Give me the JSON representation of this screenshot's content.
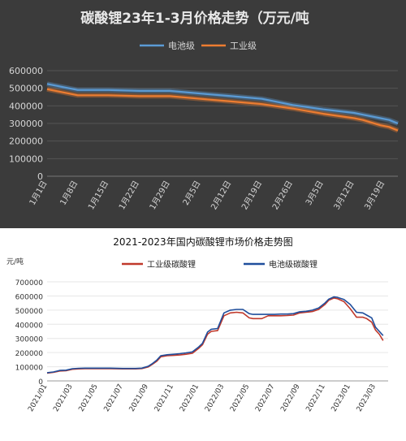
{
  "chart_data": [
    {
      "type": "line",
      "title": "碳酸锂23年1-3月价格走势（万元/吨",
      "legend_position": "top",
      "ylim": [
        0,
        600000
      ],
      "yticks": [
        0,
        100000,
        200000,
        300000,
        400000,
        500000,
        600000
      ],
      "ytick_labels": [
        "0",
        "100000",
        "200000",
        "300000",
        "400000",
        "500000",
        "600000"
      ],
      "xtick_labels": [
        "1月1日",
        "1月8日",
        "1月15日",
        "1月22日",
        "1月29日",
        "2月5日",
        "2月12日",
        "2月19日",
        "2月26日",
        "3月5日",
        "3月12日",
        "3月19日"
      ],
      "grid": true,
      "colors": {
        "电池级": "#5b9bd5",
        "工业级": "#ed7d31"
      },
      "series": [
        {
          "name": "电池级",
          "x": [
            0,
            7,
            14,
            21,
            28,
            35,
            42,
            49,
            56,
            63,
            70,
            72,
            76,
            78,
            80
          ],
          "values": [
            525000,
            490000,
            490000,
            485000,
            485000,
            470000,
            455000,
            440000,
            405000,
            380000,
            360000,
            350000,
            330000,
            320000,
            300000
          ]
        },
        {
          "name": "工业级",
          "x": [
            0,
            7,
            14,
            21,
            28,
            35,
            42,
            49,
            56,
            63,
            70,
            72,
            76,
            78,
            80
          ],
          "values": [
            495000,
            460000,
            460000,
            455000,
            455000,
            440000,
            425000,
            410000,
            385000,
            355000,
            330000,
            320000,
            290000,
            280000,
            260000
          ]
        }
      ]
    },
    {
      "type": "line",
      "title": "2021-2023年国内碳酸锂市场价格走势图",
      "ylabel": "元/吨",
      "legend_position": "top",
      "ylim": [
        0,
        700000
      ],
      "yticks": [
        0,
        100000,
        200000,
        300000,
        400000,
        500000,
        600000,
        700000
      ],
      "ytick_labels": [
        "0",
        "100000",
        "200000",
        "300000",
        "400000",
        "500000",
        "600000",
        "700000"
      ],
      "xtick_labels": [
        "2021/01",
        "2021/03",
        "2021/05",
        "2021/07",
        "2021/09",
        "2021/11",
        "2022/01",
        "2022/03",
        "2022/05",
        "2022/07",
        "2022/09",
        "2022/11",
        "2023/01",
        "2023/03"
      ],
      "grid": true,
      "colors": {
        "工业级碳酸锂": "#c0392b",
        "电池级碳酸锂": "#1f4e9c"
      },
      "series": [
        {
          "name": "工业级碳酸锂",
          "x": [
            0,
            0.5,
            1,
            1.5,
            2,
            2.5,
            3,
            4,
            5,
            6,
            7,
            7.5,
            8,
            8.3,
            8.7,
            9,
            9.5,
            10,
            10.5,
            11,
            11.5,
            12,
            12.3,
            12.7,
            13,
            13.5,
            14,
            14.5,
            15,
            15.5,
            16,
            16.3,
            16.7,
            17,
            17.5,
            18,
            18.5,
            19,
            19.5,
            20,
            20.5,
            21,
            21.5,
            22,
            22.3,
            22.7,
            23,
            23.5,
            24,
            24.5,
            25,
            25.3,
            25.7,
            26,
            26.3,
            26.6
          ],
          "values": [
            55000,
            60000,
            70000,
            72000,
            82000,
            85000,
            86000,
            86000,
            86000,
            85000,
            85000,
            87000,
            98000,
            115000,
            140000,
            170000,
            178000,
            180000,
            183000,
            188000,
            195000,
            230000,
            255000,
            330000,
            350000,
            355000,
            460000,
            480000,
            485000,
            480000,
            445000,
            440000,
            440000,
            440000,
            460000,
            460000,
            460000,
            462000,
            465000,
            480000,
            485000,
            490000,
            505000,
            540000,
            570000,
            585000,
            580000,
            560000,
            510000,
            450000,
            450000,
            440000,
            415000,
            360000,
            330000,
            285000
          ]
        },
        {
          "name": "电池级碳酸锂",
          "x": [
            0,
            0.5,
            1,
            1.5,
            2,
            2.5,
            3,
            4,
            5,
            6,
            7,
            7.5,
            8,
            8.3,
            8.7,
            9,
            9.5,
            10,
            10.5,
            11,
            11.5,
            12,
            12.3,
            12.7,
            13,
            13.5,
            14,
            14.5,
            15,
            15.5,
            16,
            16.3,
            16.7,
            17,
            17.5,
            18,
            18.5,
            19,
            19.5,
            20,
            20.5,
            21,
            21.5,
            22,
            22.3,
            22.7,
            23,
            23.5,
            24,
            24.5,
            25,
            25.3,
            25.7,
            26,
            26.3,
            26.6
          ],
          "values": [
            58000,
            63000,
            74000,
            76000,
            86000,
            89000,
            90000,
            90000,
            90000,
            88000,
            88000,
            90000,
            103000,
            120000,
            148000,
            178000,
            185000,
            188000,
            192000,
            198000,
            205000,
            240000,
            265000,
            345000,
            365000,
            370000,
            480000,
            500000,
            505000,
            505000,
            475000,
            470000,
            470000,
            470000,
            470000,
            470000,
            472000,
            472000,
            475000,
            488000,
            492000,
            500000,
            515000,
            550000,
            578000,
            593000,
            590000,
            575000,
            540000,
            485000,
            480000,
            465000,
            445000,
            380000,
            350000,
            320000
          ]
        }
      ]
    }
  ]
}
